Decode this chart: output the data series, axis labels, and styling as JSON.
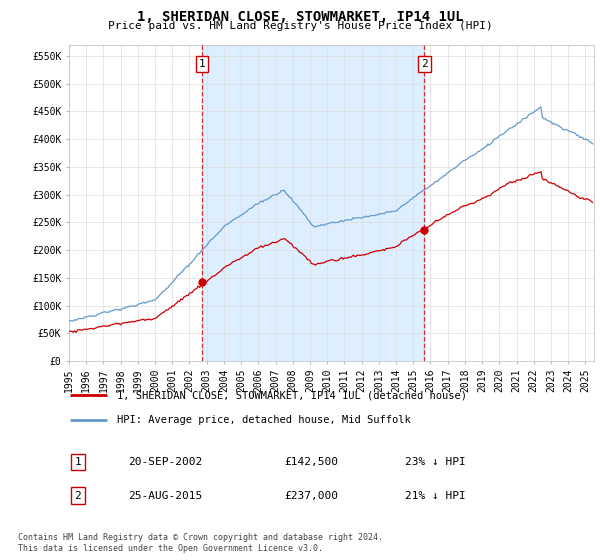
{
  "title": "1, SHERIDAN CLOSE, STOWMARKET, IP14 1UL",
  "subtitle": "Price paid vs. HM Land Registry's House Price Index (HPI)",
  "ylim": [
    0,
    570000
  ],
  "yticks": [
    0,
    50000,
    100000,
    150000,
    200000,
    250000,
    300000,
    350000,
    400000,
    450000,
    500000,
    550000
  ],
  "ytick_labels": [
    "£0",
    "£50K",
    "£100K",
    "£150K",
    "£200K",
    "£250K",
    "£300K",
    "£350K",
    "£400K",
    "£450K",
    "£500K",
    "£550K"
  ],
  "hpi_color": "#6699cc",
  "price_color": "#cc0000",
  "vline_color": "#cc0000",
  "shade_color": "#ddeeff",
  "marker1_year": 2002.72,
  "marker2_year": 2015.65,
  "marker1_price": 142500,
  "marker2_price": 237000,
  "legend1": "1, SHERIDAN CLOSE, STOWMARKET, IP14 1UL (detached house)",
  "legend2": "HPI: Average price, detached house, Mid Suffolk",
  "table_row1": [
    "1",
    "20-SEP-2002",
    "£142,500",
    "23% ↓ HPI"
  ],
  "table_row2": [
    "2",
    "25-AUG-2015",
    "£237,000",
    "21% ↓ HPI"
  ],
  "footnote": "Contains HM Land Registry data © Crown copyright and database right 2024.\nThis data is licensed under the Open Government Licence v3.0.",
  "background_color": "#ffffff",
  "grid_color": "#dddddd"
}
